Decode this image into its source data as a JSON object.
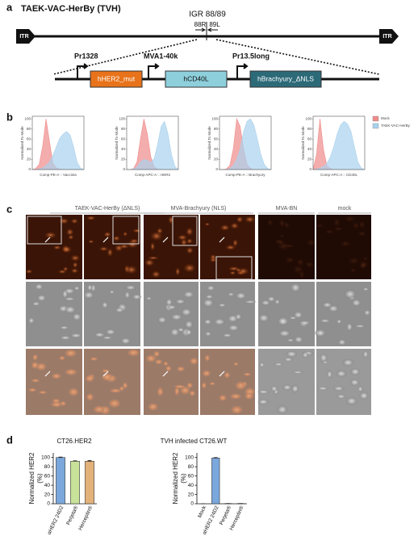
{
  "panel_labels": {
    "a": "a",
    "b": "b",
    "c": "c",
    "d": "d"
  },
  "construct": {
    "title": "TAEK-VAC-HerBy (TVH)",
    "site": "IGR 88/89",
    "flank_left": "88R",
    "flank_right": "89L",
    "itr_left": "ITR",
    "itr_right": "ITR",
    "promoters": [
      "Pr1328",
      "MVA1-40k",
      "Pr13.5long"
    ],
    "genes": [
      "hHER2_mut",
      "hCD40L",
      "hBrachyury_ΔNLS"
    ]
  },
  "microscopy": {
    "headers": [
      "TAEK-VAC-HerBy (ΔNLS)",
      "MVA-Brachyury (NLS)",
      "MVA-BN",
      "mock"
    ]
  },
  "chart_data": [
    {
      "type": "area",
      "ylabel": "Normalized To Mode",
      "ylim": [
        0,
        105
      ],
      "yticks": [
        0,
        20,
        40,
        60,
        80,
        100
      ],
      "legend": "right",
      "categories": [
        null,
        null,
        null,
        null,
        null,
        null,
        null,
        null,
        null,
        null,
        null,
        null,
        null,
        null,
        null,
        null
      ],
      "series": [
        {
          "name": "Mock",
          "color": "#f08a8a"
        },
        {
          "name": "TAEK-VAC-HerBy",
          "color": "#a9d2ee"
        }
      ],
      "panels": [
        {
          "xlabel": "Comp-PE-A :: Vaccinia",
          "series": [
            {
              "values": [
                0,
                2,
                10,
                45,
                100,
                55,
                12,
                3,
                1,
                0,
                0,
                0,
                0,
                0,
                0,
                0
              ]
            },
            {
              "values": [
                0,
                0,
                1,
                3,
                8,
                15,
                28,
                45,
                62,
                70,
                75,
                68,
                45,
                15,
                3,
                0
              ]
            }
          ]
        },
        {
          "xlabel": "Comp-APC-A :: HER2",
          "series": [
            {
              "values": [
                0,
                0,
                2,
                15,
                60,
                100,
                70,
                25,
                5,
                1,
                0,
                0,
                0,
                0,
                0,
                0
              ]
            },
            {
              "values": [
                0,
                0,
                1,
                5,
                15,
                20,
                18,
                14,
                22,
                50,
                85,
                95,
                70,
                30,
                6,
                0
              ]
            }
          ]
        },
        {
          "xlabel": "Comp-PE-A :: Brachyury",
          "series": [
            {
              "values": [
                0,
                0,
                1,
                8,
                40,
                100,
                85,
                40,
                10,
                2,
                0,
                0,
                0,
                0,
                0,
                0
              ]
            },
            {
              "values": [
                0,
                0,
                0,
                2,
                8,
                20,
                40,
                75,
                95,
                100,
                88,
                60,
                30,
                10,
                2,
                0
              ]
            }
          ]
        },
        {
          "xlabel": "Comp-APC-A :: CD40L",
          "series": [
            {
              "values": [
                0,
                30,
                100,
                40,
                8,
                2,
                0,
                0,
                0,
                0,
                0,
                0,
                0,
                0,
                0,
                0
              ]
            },
            {
              "values": [
                0,
                1,
                3,
                6,
                12,
                25,
                45,
                70,
                88,
                95,
                90,
                75,
                45,
                15,
                3,
                0
              ]
            }
          ]
        }
      ]
    },
    {
      "type": "bar",
      "title": "CT26.HER2",
      "ylabel": [
        "Normalized HER2",
        "(%)"
      ],
      "categories": [
        "αHER2 24D2",
        "Perjeta®",
        "Herceptin®"
      ],
      "values": [
        100,
        92,
        92
      ],
      "errors": [
        1,
        1,
        1.5
      ],
      "colors": [
        "#7aa7dc",
        "#c8e29a",
        "#e3b27a"
      ],
      "ylim": [
        0,
        110
      ],
      "yticks": [
        0,
        20,
        40,
        60,
        80,
        100
      ]
    },
    {
      "type": "bar",
      "title": "TVH infected CT26.WT",
      "ylabel": [
        "Normalized HER2",
        "(%)"
      ],
      "categories": [
        "Mock",
        "αHER2 24D2",
        "Perjeta®",
        "Herceptin®"
      ],
      "values": [
        0,
        99,
        0.5,
        0.5
      ],
      "errors": [
        0,
        1,
        0,
        0
      ],
      "colors": [
        "#7aa7dc",
        "#7aa7dc",
        "#7aa7dc",
        "#7aa7dc"
      ],
      "ylim": [
        0,
        110
      ],
      "yticks": [
        0,
        20,
        40,
        60,
        80,
        100
      ]
    }
  ]
}
